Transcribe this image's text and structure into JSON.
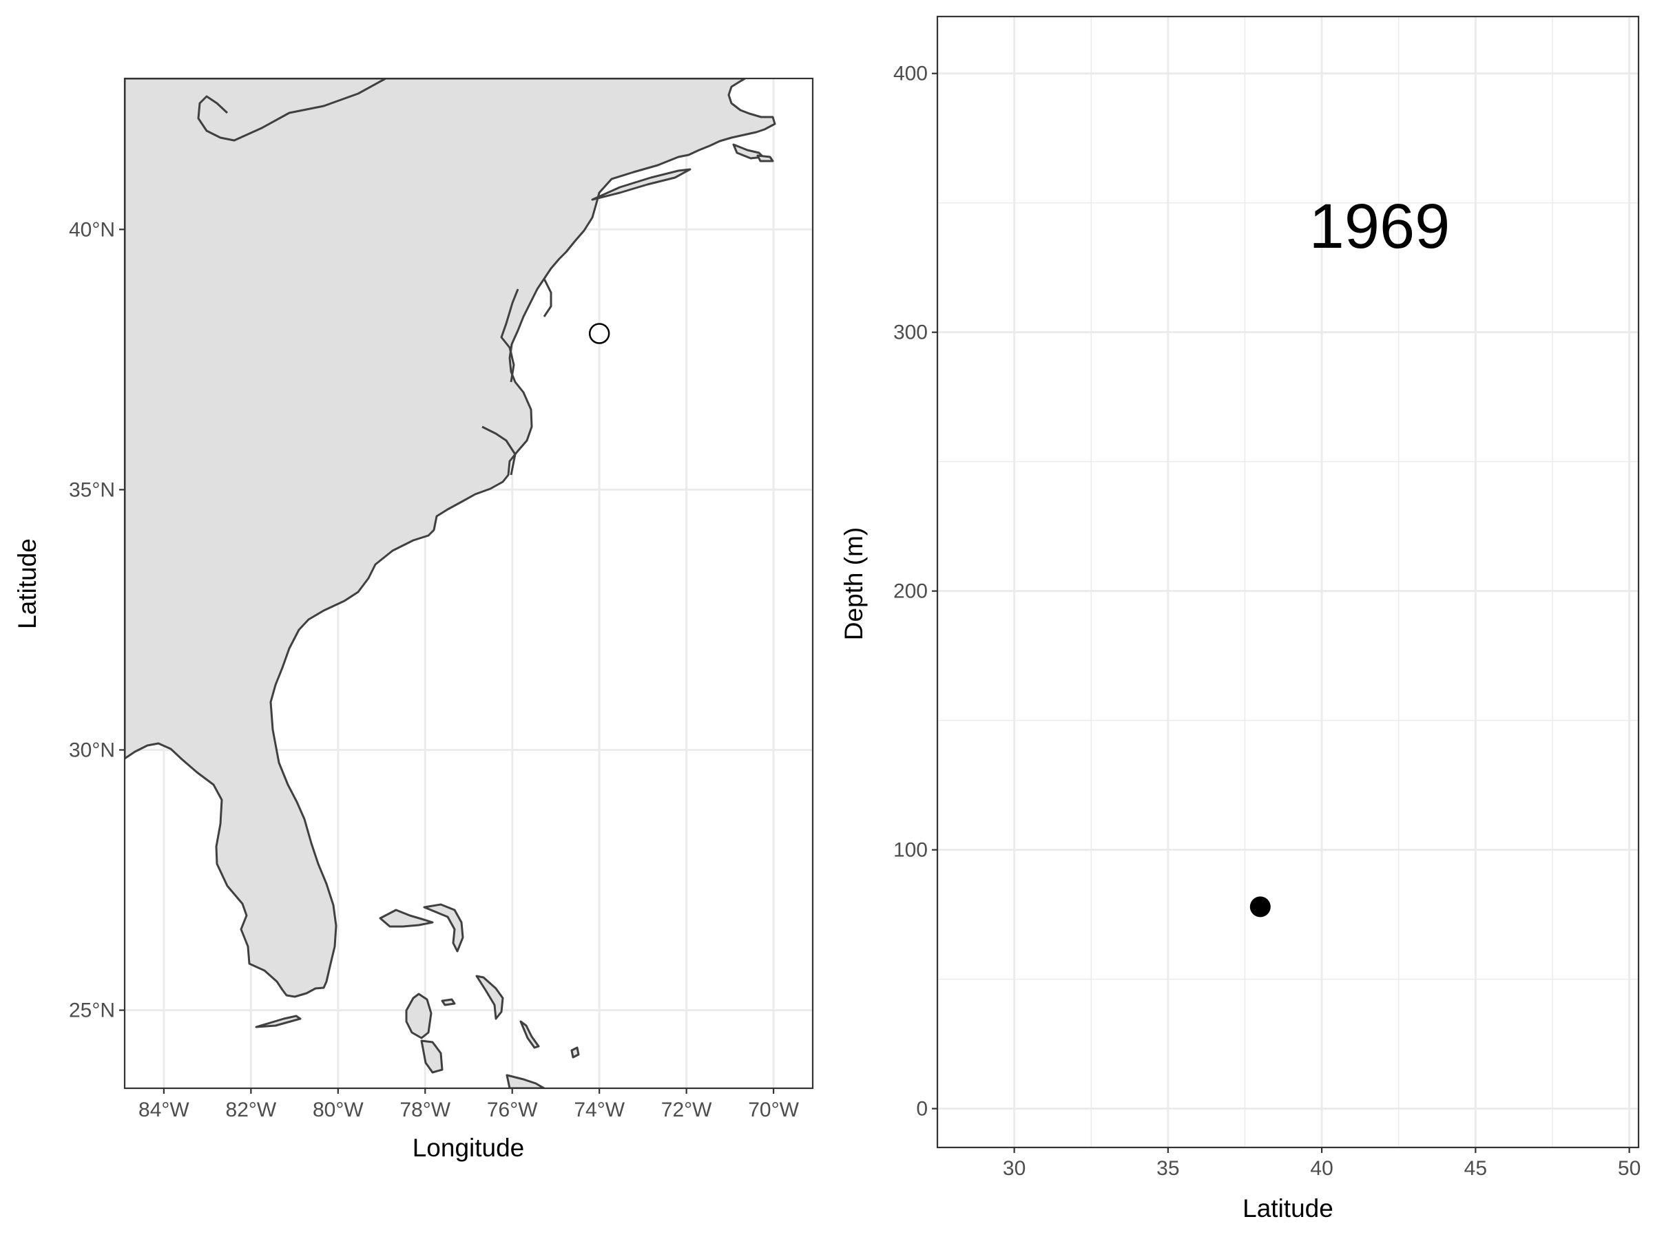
{
  "chart_data": [
    {
      "type": "scatter",
      "subtype": "map",
      "xlabel": "Longitude",
      "ylabel": "Latitude",
      "xlim": [
        -84.9,
        -69.1
      ],
      "ylim": [
        23.5,
        42.9
      ],
      "x_ticks": [
        {
          "value": -84,
          "label": "84°W"
        },
        {
          "value": -82,
          "label": "82°W"
        },
        {
          "value": -80,
          "label": "80°W"
        },
        {
          "value": -78,
          "label": "78°W"
        },
        {
          "value": -76,
          "label": "76°W"
        },
        {
          "value": -74,
          "label": "74°W"
        },
        {
          "value": -72,
          "label": "72°W"
        },
        {
          "value": -70,
          "label": "70°W"
        }
      ],
      "y_ticks": [
        {
          "value": 25,
          "label": "25°N"
        },
        {
          "value": 30,
          "label": "30°N"
        },
        {
          "value": 35,
          "label": "35°N"
        },
        {
          "value": 40,
          "label": "40°N"
        }
      ],
      "grid": true,
      "land_fill": "#e0e0e0",
      "points": [
        {
          "x": -74.0,
          "y": 38.0,
          "shape": "open-circle"
        }
      ]
    },
    {
      "type": "scatter",
      "xlabel": "Latitude",
      "ylabel": "Depth (m)",
      "xlim": [
        27.5,
        50.3
      ],
      "ylim": [
        -15,
        422
      ],
      "x_ticks": [
        30,
        35,
        40,
        45,
        50
      ],
      "y_ticks": [
        0,
        100,
        200,
        300,
        400
      ],
      "grid": true,
      "annotation": "1969",
      "points": [
        {
          "x": 38.0,
          "y": 78,
          "shape": "filled-circle"
        }
      ]
    }
  ]
}
